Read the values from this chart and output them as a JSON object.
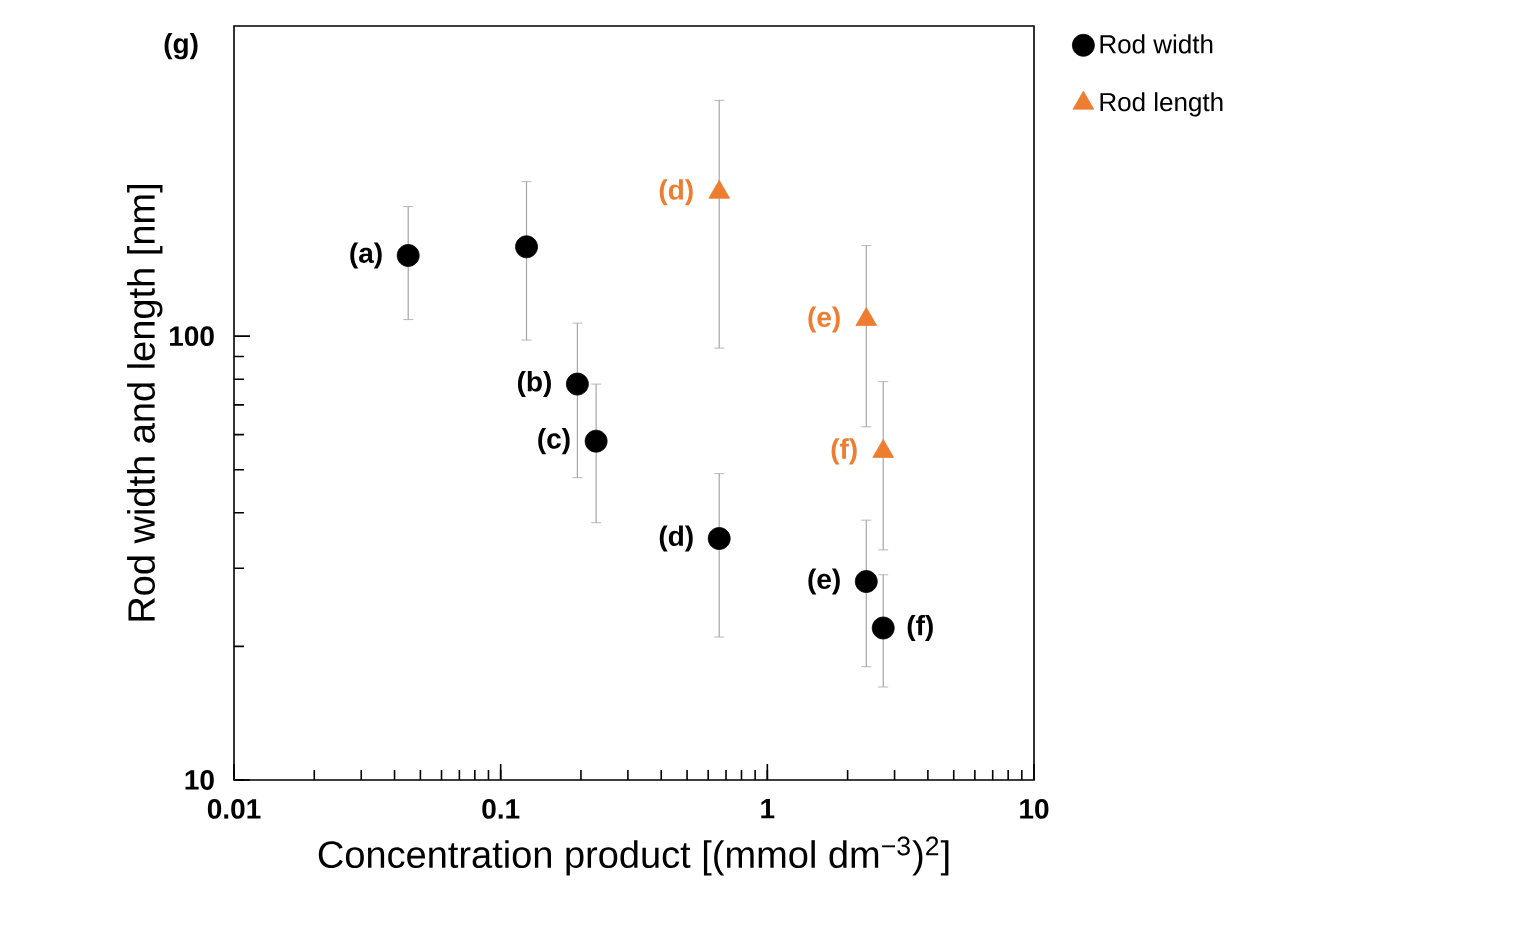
{
  "chart_data": {
    "type": "scatter",
    "xlabel": "Concentration product [(mmol dm$^{−3}$)$^{2}$]",
    "ylabel": "Rod width and length [nm]",
    "annotations": [
      "(g)"
    ],
    "log": "xy",
    "xlim": [
      0.01,
      10
    ],
    "xticks": [
      0.01,
      0.1,
      1,
      10
    ],
    "ylim": [
      10,
      500
    ],
    "yticks": [
      10,
      100
    ],
    "legend": "top right",
    "grid": false,
    "series": [
      {
        "name": "Rod width",
        "color": "#000000",
        "marker": "circle",
        "x": [
          0.045,
          0.125,
          0.194,
          0.228,
          0.66,
          2.35,
          2.72
        ],
        "values": [
          152,
          159,
          78,
          58,
          35,
          28,
          22
        ],
        "errors": [
          [
            109,
            196
          ],
          [
            98,
            223
          ],
          [
            48,
            107
          ],
          [
            38,
            78
          ],
          [
            21,
            49
          ],
          [
            18,
            38.5
          ],
          [
            16.2,
            29
          ]
        ],
        "value_labels": [
          "(a)",
          null,
          "(b)",
          "(c)",
          "(d)",
          "(e)",
          "(f)"
        ]
      },
      {
        "name": "Rod length",
        "color": "#ed7d31",
        "marker": "triangle",
        "x": [
          0.66,
          2.35,
          2.72
        ],
        "values": [
          211,
          109,
          55
        ],
        "errors": [
          [
            94,
            340
          ],
          [
            62.5,
            160
          ],
          [
            33,
            79
          ]
        ],
        "value_labels": [
          "(d)",
          "(e)",
          "(f)"
        ]
      }
    ]
  }
}
